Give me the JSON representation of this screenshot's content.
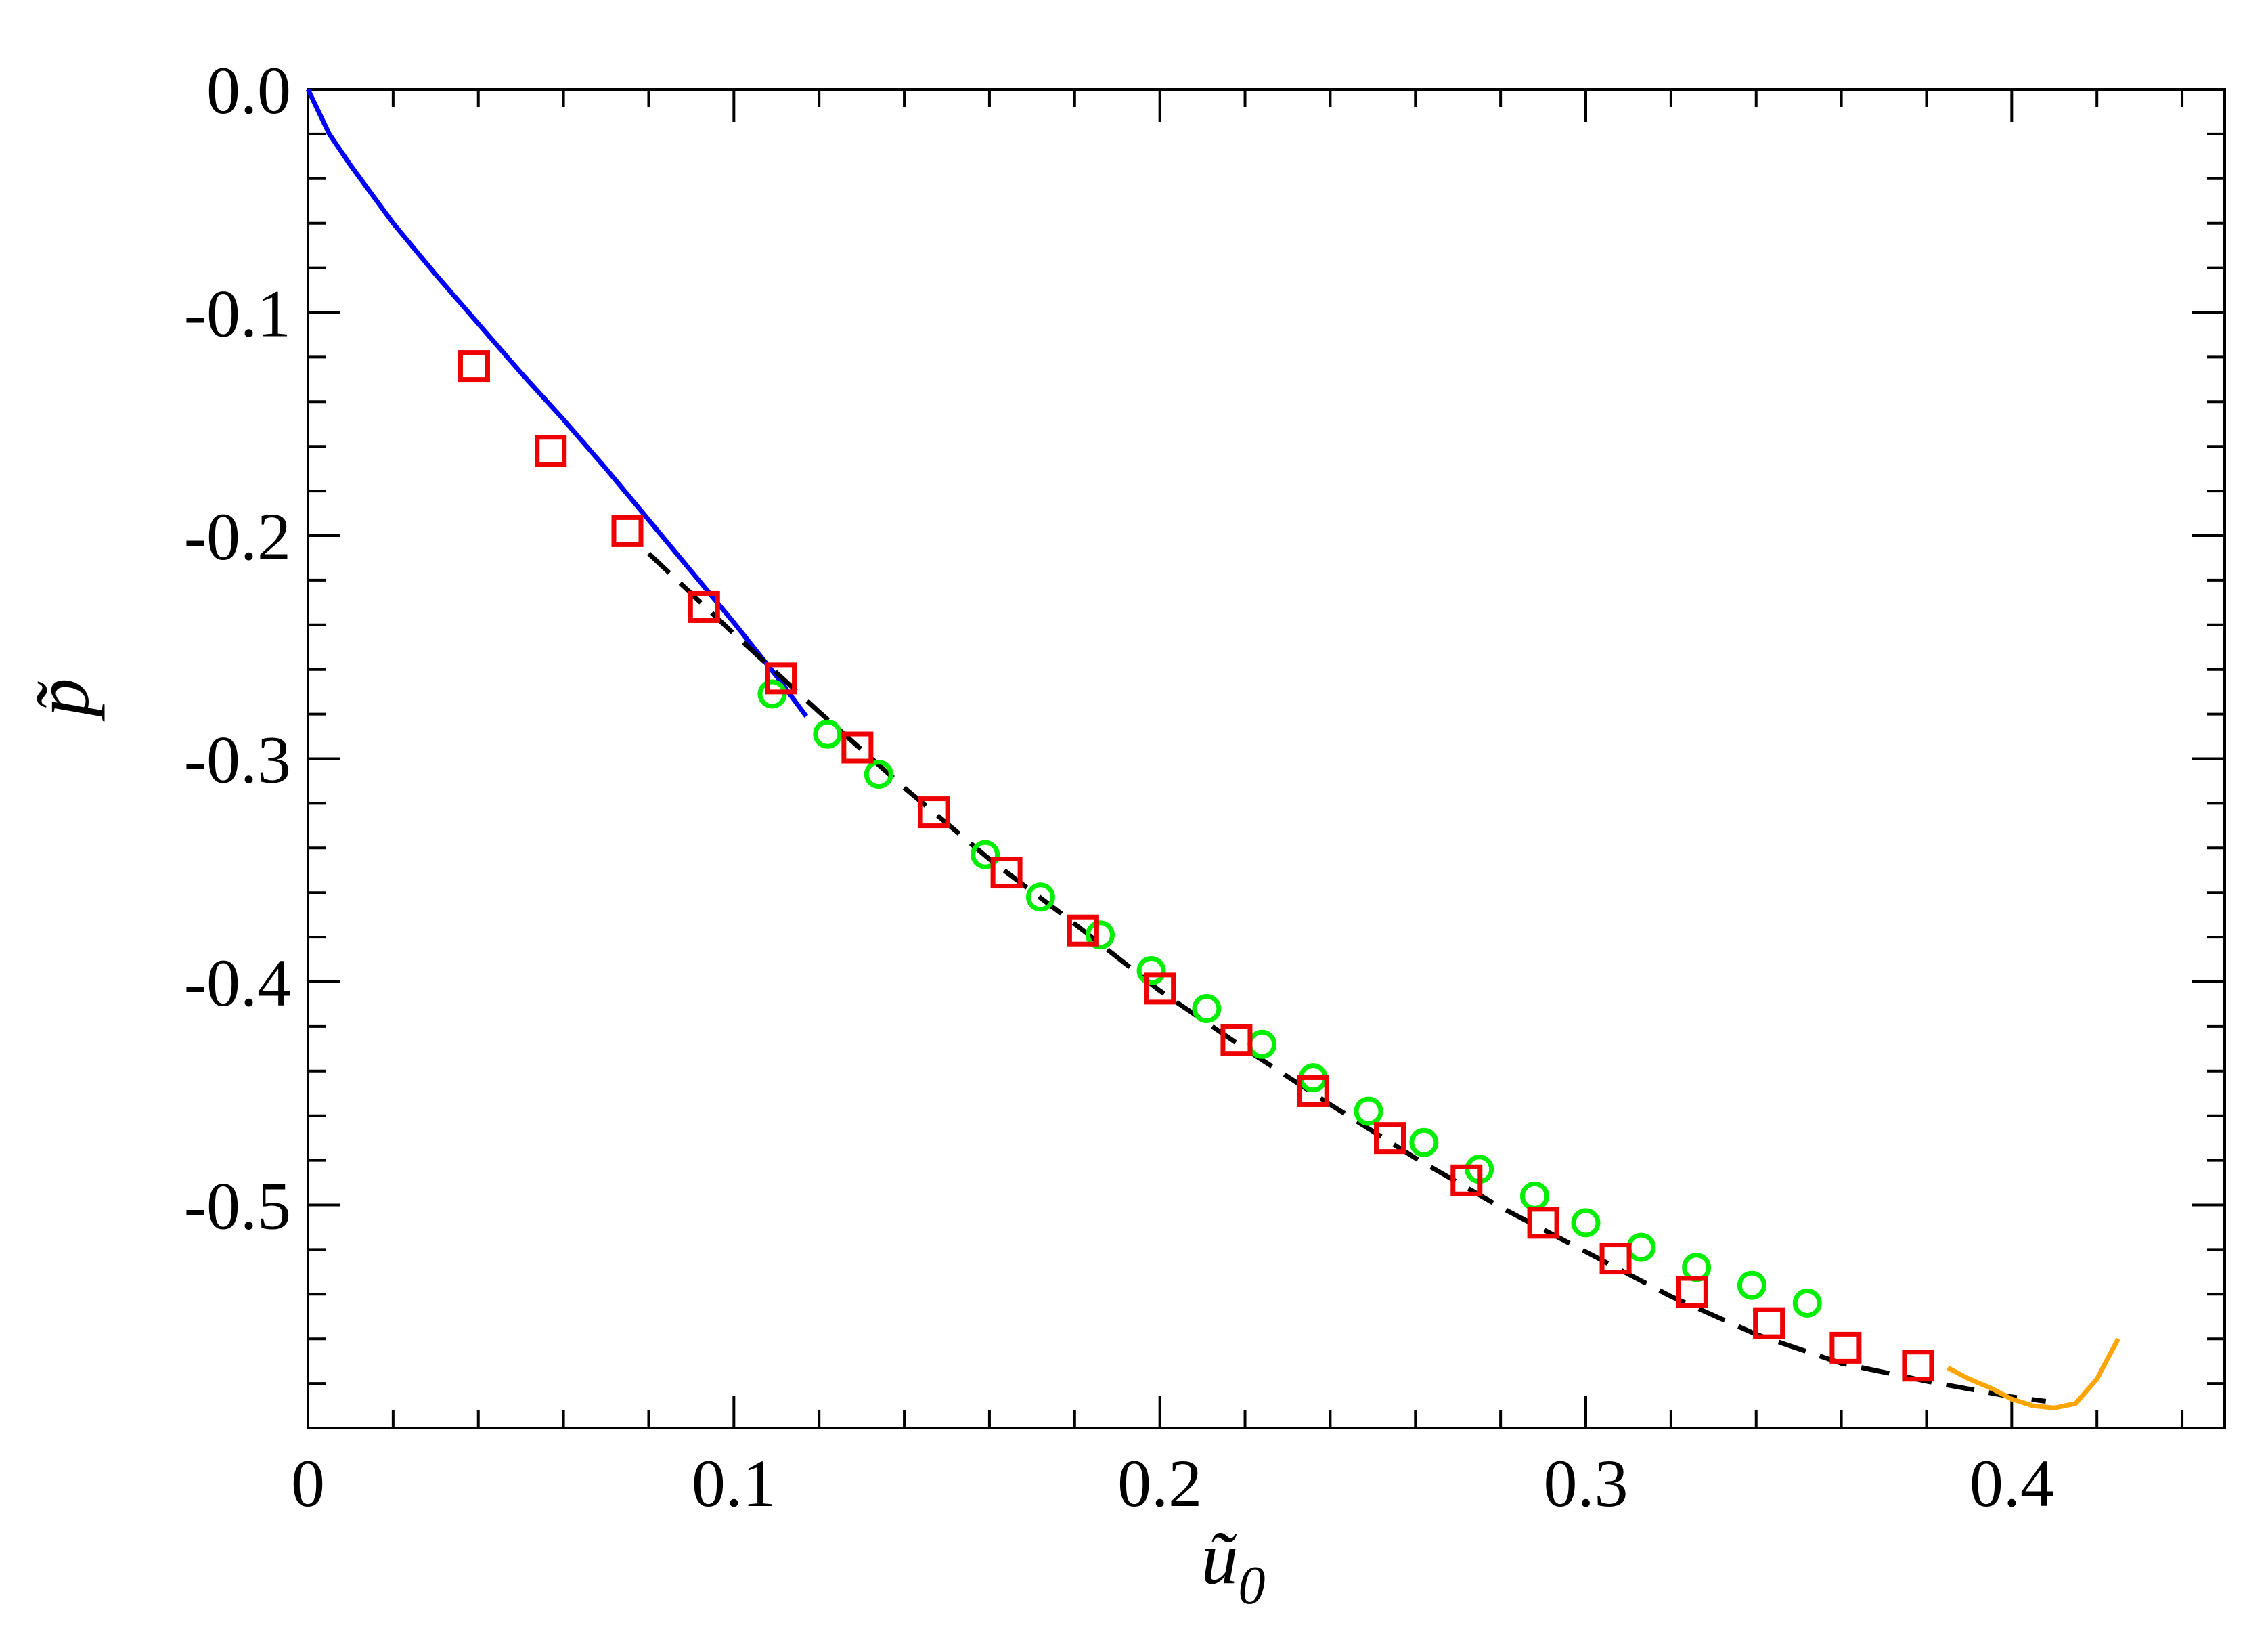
{
  "chart_data": {
    "type": "line",
    "xlabel": "ũ0",
    "xlabel_main": "ũ",
    "xlabel_sub": "0",
    "ylabel": "p̃",
    "xlim": [
      0,
      0.45
    ],
    "ylim": [
      -0.6,
      0.0
    ],
    "x_ticks": [
      0,
      0.1,
      0.2,
      0.3,
      0.4
    ],
    "x_tick_labels": [
      "0",
      "0.1",
      "0.2",
      "0.3",
      "0.4"
    ],
    "x_minor_step": 0.02,
    "y_ticks": [
      0.0,
      -0.1,
      -0.2,
      -0.3,
      -0.4,
      -0.5
    ],
    "y_tick_labels": [
      "0.0",
      "-0.1",
      "-0.2",
      "-0.3",
      "-0.4",
      "-0.5"
    ],
    "y_minor_step": 0.02,
    "grid": false,
    "legend": "none",
    "series": [
      {
        "style": "solid-line",
        "color": "#0000ff",
        "x": [
          0.0,
          0.005,
          0.01,
          0.02,
          0.03,
          0.04,
          0.05,
          0.06,
          0.07,
          0.08,
          0.09,
          0.1,
          0.11,
          0.117
        ],
        "y": [
          0.0,
          -0.02,
          -0.034,
          -0.06,
          -0.083,
          -0.105,
          -0.127,
          -0.148,
          -0.17,
          -0.193,
          -0.216,
          -0.239,
          -0.263,
          -0.281
        ]
      },
      {
        "style": "dashed-line",
        "color": "#000000",
        "x": [
          0.08,
          0.1,
          0.12,
          0.14,
          0.16,
          0.18,
          0.2,
          0.22,
          0.24,
          0.26,
          0.28,
          0.3,
          0.32,
          0.34,
          0.36,
          0.38,
          0.4,
          0.408
        ],
        "y": [
          -0.208,
          -0.244,
          -0.279,
          -0.313,
          -0.345,
          -0.374,
          -0.404,
          -0.43,
          -0.455,
          -0.479,
          -0.501,
          -0.521,
          -0.541,
          -0.558,
          -0.571,
          -0.579,
          -0.586,
          -0.588
        ]
      },
      {
        "style": "solid-line",
        "color": "#ffa500",
        "x": [
          0.385,
          0.39,
          0.395,
          0.4,
          0.405,
          0.41,
          0.415,
          0.42,
          0.425
        ],
        "y": [
          -0.573,
          -0.578,
          -0.582,
          -0.587,
          -0.59,
          -0.591,
          -0.589,
          -0.578,
          -0.56
        ]
      },
      {
        "style": "circle-markers",
        "color": "#00ee00",
        "x": [
          0.109,
          0.122,
          0.134,
          0.159,
          0.172,
          0.186,
          0.198,
          0.211,
          0.224,
          0.236,
          0.249,
          0.262,
          0.275,
          0.288,
          0.3,
          0.313,
          0.326,
          0.339,
          0.352
        ],
        "y": [
          -0.271,
          -0.289,
          -0.307,
          -0.343,
          -0.362,
          -0.379,
          -0.395,
          -0.412,
          -0.428,
          -0.443,
          -0.458,
          -0.472,
          -0.484,
          -0.496,
          -0.508,
          -0.519,
          -0.528,
          -0.536,
          -0.544
        ]
      },
      {
        "style": "square-markers",
        "color": "#ee0000",
        "x": [
          0.039,
          0.057,
          0.075,
          0.093,
          0.111,
          0.129,
          0.147,
          0.164,
          0.182,
          0.2,
          0.218,
          0.236,
          0.254,
          0.272,
          0.29,
          0.307,
          0.325,
          0.343,
          0.361,
          0.378
        ],
        "y": [
          -0.124,
          -0.162,
          -0.198,
          -0.232,
          -0.264,
          -0.295,
          -0.324,
          -0.351,
          -0.377,
          -0.403,
          -0.426,
          -0.449,
          -0.47,
          -0.489,
          -0.508,
          -0.524,
          -0.539,
          -0.553,
          -0.564,
          -0.572
        ]
      }
    ]
  }
}
